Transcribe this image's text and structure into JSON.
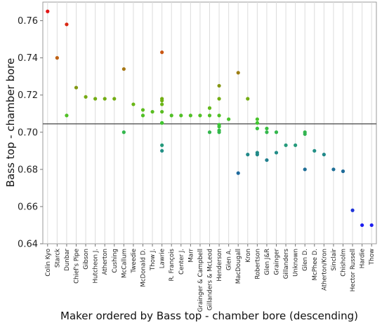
{
  "chart_data": {
    "type": "scatter",
    "title": "",
    "xlabel": "Maker ordered by Bass top - chamber bore (descending)",
    "ylabel": "Bass top - chamber bore",
    "ylim": [
      0.64,
      0.77
    ],
    "yticks": [
      0.64,
      0.66,
      0.68,
      0.7,
      0.72,
      0.74,
      0.76
    ],
    "reference_line": 0.7045,
    "grid": "vertical",
    "categories": [
      "Colin Kyo",
      "Starck",
      "Dunbar",
      "Chief's Pipe",
      "Gibson",
      "Hutcheon J.",
      "Atherton",
      "Cushing",
      "McCallum",
      "Tweedie",
      "McDonald D.",
      "Thow J.",
      "Lawrie",
      "R. François",
      "Center J.",
      "Marr",
      "Grainger & Campbell",
      "Gillanders & McLeod",
      "Henderson",
      "Glen A.",
      "MacDougall",
      "Kron",
      "Robertson",
      "Glen J&R",
      "Grainger",
      "Gillanders",
      "Unknown",
      "Glen D.",
      "McPhee D.",
      "Atherton/Kron",
      "Sinclair",
      "Chisholm",
      "Hector Russell",
      "Hardie",
      "Thow"
    ],
    "points": [
      {
        "x": "Colin Kyo",
        "y": 0.765
      },
      {
        "x": "Starck",
        "y": 0.74
      },
      {
        "x": "Dunbar",
        "y": 0.758
      },
      {
        "x": "Dunbar",
        "y": 0.709
      },
      {
        "x": "Chief's Pipe",
        "y": 0.724
      },
      {
        "x": "Gibson",
        "y": 0.719
      },
      {
        "x": "Hutcheon J.",
        "y": 0.718
      },
      {
        "x": "Atherton",
        "y": 0.718
      },
      {
        "x": "Cushing",
        "y": 0.718
      },
      {
        "x": "McCallum",
        "y": 0.734
      },
      {
        "x": "McCallum",
        "y": 0.7
      },
      {
        "x": "Tweedie",
        "y": 0.715
      },
      {
        "x": "McDonald D.",
        "y": 0.712
      },
      {
        "x": "McDonald D.",
        "y": 0.709
      },
      {
        "x": "Thow J.",
        "y": 0.711
      },
      {
        "x": "Lawrie",
        "y": 0.743
      },
      {
        "x": "Lawrie",
        "y": 0.718
      },
      {
        "x": "Lawrie",
        "y": 0.717
      },
      {
        "x": "Lawrie",
        "y": 0.715
      },
      {
        "x": "Lawrie",
        "y": 0.711
      },
      {
        "x": "Lawrie",
        "y": 0.705
      },
      {
        "x": "Lawrie",
        "y": 0.705
      },
      {
        "x": "Lawrie",
        "y": 0.693
      },
      {
        "x": "Lawrie",
        "y": 0.69
      },
      {
        "x": "R. François",
        "y": 0.709
      },
      {
        "x": "Center J.",
        "y": 0.709
      },
      {
        "x": "Marr",
        "y": 0.709
      },
      {
        "x": "Grainger & Campbell",
        "y": 0.709
      },
      {
        "x": "Gillanders & McLeod",
        "y": 0.713
      },
      {
        "x": "Gillanders & McLeod",
        "y": 0.709
      },
      {
        "x": "Gillanders & McLeod",
        "y": 0.7
      },
      {
        "x": "Henderson",
        "y": 0.725
      },
      {
        "x": "Henderson",
        "y": 0.718
      },
      {
        "x": "Henderson",
        "y": 0.709
      },
      {
        "x": "Henderson",
        "y": 0.704
      },
      {
        "x": "Henderson",
        "y": 0.703
      },
      {
        "x": "Henderson",
        "y": 0.701
      },
      {
        "x": "Henderson",
        "y": 0.7
      },
      {
        "x": "Glen A.",
        "y": 0.707
      },
      {
        "x": "MacDougall",
        "y": 0.732
      },
      {
        "x": "MacDougall",
        "y": 0.678
      },
      {
        "x": "Kron",
        "y": 0.718
      },
      {
        "x": "Kron",
        "y": 0.688
      },
      {
        "x": "Robertson",
        "y": 0.707
      },
      {
        "x": "Robertson",
        "y": 0.705
      },
      {
        "x": "Robertson",
        "y": 0.702
      },
      {
        "x": "Robertson",
        "y": 0.689
      },
      {
        "x": "Robertson",
        "y": 0.688
      },
      {
        "x": "Glen J&R",
        "y": 0.702
      },
      {
        "x": "Glen J&R",
        "y": 0.7
      },
      {
        "x": "Glen J&R",
        "y": 0.685
      },
      {
        "x": "Grainger",
        "y": 0.7
      },
      {
        "x": "Grainger",
        "y": 0.689
      },
      {
        "x": "Gillanders",
        "y": 0.693
      },
      {
        "x": "Unknown",
        "y": 0.693
      },
      {
        "x": "Glen D.",
        "y": 0.7
      },
      {
        "x": "Glen D.",
        "y": 0.699
      },
      {
        "x": "Glen D.",
        "y": 0.68
      },
      {
        "x": "McPhee D.",
        "y": 0.69
      },
      {
        "x": "Atherton/Kron",
        "y": 0.688
      },
      {
        "x": "Sinclair",
        "y": 0.68
      },
      {
        "x": "Chisholm",
        "y": 0.679
      },
      {
        "x": "Hector Russell",
        "y": 0.658
      },
      {
        "x": "Hardie",
        "y": 0.65
      },
      {
        "x": "Thow",
        "y": 0.65
      }
    ]
  }
}
